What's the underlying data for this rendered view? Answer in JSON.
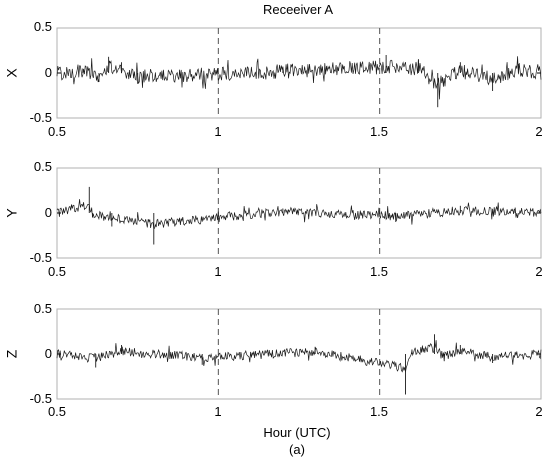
{
  "chart_data": [
    {
      "type": "line",
      "title": "Receeiver A",
      "ylabel": "X",
      "xlabel": "",
      "xlim": [
        0.5,
        2
      ],
      "ylim": [
        -0.5,
        0.5
      ],
      "xticks": [
        "0.5",
        "1",
        "1.5",
        "2"
      ],
      "yticks": [
        "-0.5",
        "0",
        "0.5"
      ],
      "vlines": [
        1,
        1.5
      ],
      "series": [
        {
          "amplitude": 0.08,
          "x": [
            0.5,
            0.58,
            0.63,
            0.66,
            0.7,
            0.75,
            1.2,
            1.52,
            1.62,
            1.68,
            1.75,
            1.85,
            1.93,
            2.0
          ],
          "y": [
            0.0,
            0.05,
            -0.1,
            0.18,
            0.12,
            -0.12,
            0.05,
            0.2,
            0.15,
            -0.38,
            0.12,
            -0.2,
            0.1,
            0.0
          ]
        }
      ]
    },
    {
      "type": "line",
      "title": "",
      "ylabel": "Y",
      "xlabel": "",
      "xlim": [
        0.5,
        2
      ],
      "ylim": [
        -0.5,
        0.5
      ],
      "xticks": [
        "0.5",
        "1",
        "1.5",
        "2"
      ],
      "yticks": [
        "-0.5",
        "0",
        "0.5"
      ],
      "vlines": [
        1,
        1.5
      ],
      "series": [
        {
          "amplitude": 0.05,
          "x": [
            0.5,
            0.6,
            0.61,
            0.67,
            0.8,
            1.2,
            1.55,
            1.75,
            1.92,
            2.0
          ],
          "y": [
            0.0,
            0.29,
            -0.05,
            -0.15,
            -0.35,
            0.05,
            -0.1,
            0.08,
            0.06,
            0.0
          ]
        }
      ]
    },
    {
      "type": "line",
      "title": "",
      "ylabel": "Z",
      "xlabel": "Hour (UTC)",
      "xlim": [
        0.5,
        2
      ],
      "ylim": [
        -0.5,
        0.5
      ],
      "xticks": [
        "0.5",
        "1",
        "1.5",
        "2"
      ],
      "yticks": [
        "-0.5",
        "0",
        "0.5"
      ],
      "vlines": [
        1,
        1.5
      ],
      "series": [
        {
          "amplitude": 0.05,
          "x": [
            0.5,
            0.62,
            0.7,
            0.95,
            1.3,
            1.58,
            1.6,
            1.67,
            1.7,
            1.75,
            1.85,
            2.0
          ],
          "y": [
            0.0,
            -0.15,
            0.1,
            -0.12,
            0.08,
            -0.45,
            0.05,
            0.22,
            -0.08,
            0.1,
            -0.1,
            0.0
          ]
        }
      ]
    }
  ],
  "figure": {
    "caption": "(a)",
    "line_color": "#1a1a1a",
    "axis_color": "#000000",
    "box_color": "#b0b0b0",
    "vline_color": "#555555"
  }
}
